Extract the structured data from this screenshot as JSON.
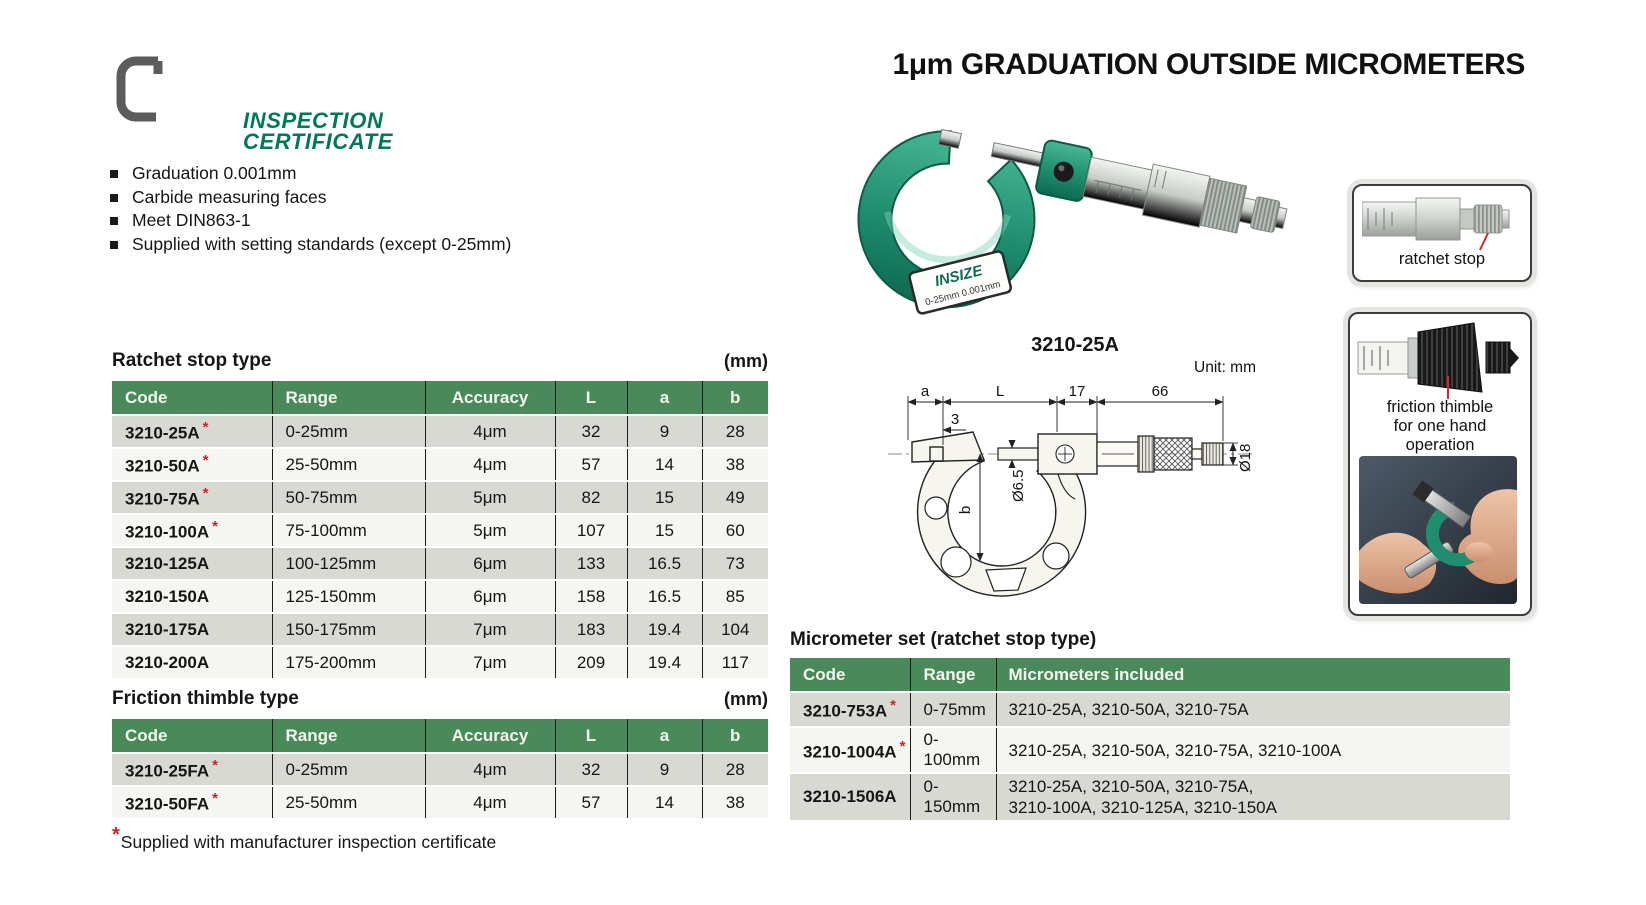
{
  "page": {
    "title": "1μm GRADUATION OUTSIDE MICROMETERS",
    "logo": {
      "line1": "INSPECTION",
      "line2": "CERTIFICATE"
    },
    "features": [
      "Graduation 0.001mm",
      "Carbide measuring faces",
      "Meet DIN863-1",
      "Supplied with setting standards (except 0-25mm)"
    ],
    "footnote": {
      "marker": "*",
      "text": "Supplied with manufacturer inspection certificate"
    }
  },
  "product": {
    "caption": "3210-25A",
    "plate": {
      "brand": "INSIZE",
      "spec": "0-25mm 0.001mm"
    }
  },
  "drawing": {
    "unit": "Unit: mm",
    "labels": {
      "a": "a",
      "L": "L",
      "d17": "17",
      "d66": "66",
      "d3": "3",
      "b": "b",
      "dia65": "Ø6.5",
      "dia18": "Ø18"
    }
  },
  "callouts": {
    "ratchet": {
      "label": "ratchet stop"
    },
    "friction": {
      "label_lines": [
        "friction thimble",
        "for one hand",
        "operation"
      ]
    }
  },
  "tables": {
    "ratchet": {
      "title": "Ratchet stop type",
      "unit": "(mm)",
      "columns": [
        "Code",
        "Range",
        "Accuracy",
        "L",
        "a",
        "b"
      ],
      "rows": [
        {
          "code": "3210-25A",
          "star": true,
          "range": "0-25mm",
          "accuracy": "4μm",
          "L": "32",
          "a": "9",
          "b": "28"
        },
        {
          "code": "3210-50A",
          "star": true,
          "range": "25-50mm",
          "accuracy": "4μm",
          "L": "57",
          "a": "14",
          "b": "38"
        },
        {
          "code": "3210-75A",
          "star": true,
          "range": "50-75mm",
          "accuracy": "5μm",
          "L": "82",
          "a": "15",
          "b": "49"
        },
        {
          "code": "3210-100A",
          "star": true,
          "range": "75-100mm",
          "accuracy": "5μm",
          "L": "107",
          "a": "15",
          "b": "60"
        },
        {
          "code": "3210-125A",
          "star": false,
          "range": "100-125mm",
          "accuracy": "6μm",
          "L": "133",
          "a": "16.5",
          "b": "73"
        },
        {
          "code": "3210-150A",
          "star": false,
          "range": "125-150mm",
          "accuracy": "6μm",
          "L": "158",
          "a": "16.5",
          "b": "85"
        },
        {
          "code": "3210-175A",
          "star": false,
          "range": "150-175mm",
          "accuracy": "7μm",
          "L": "183",
          "a": "19.4",
          "b": "104"
        },
        {
          "code": "3210-200A",
          "star": false,
          "range": "175-200mm",
          "accuracy": "7μm",
          "L": "209",
          "a": "19.4",
          "b": "117"
        }
      ]
    },
    "friction": {
      "title": "Friction thimble type",
      "unit": "(mm)",
      "columns": [
        "Code",
        "Range",
        "Accuracy",
        "L",
        "a",
        "b"
      ],
      "rows": [
        {
          "code": "3210-25FA",
          "star": true,
          "range": "0-25mm",
          "accuracy": "4μm",
          "L": "32",
          "a": "9",
          "b": "28"
        },
        {
          "code": "3210-50FA",
          "star": true,
          "range": "25-50mm",
          "accuracy": "4μm",
          "L": "57",
          "a": "14",
          "b": "38"
        }
      ]
    },
    "set": {
      "title": "Micrometer set (ratchet stop type)",
      "columns": [
        "Code",
        "Range",
        "Micrometers included"
      ],
      "rows": [
        {
          "code": "3210-753A",
          "star": true,
          "range": "0-75mm",
          "included": "3210-25A, 3210-50A, 3210-75A"
        },
        {
          "code": "3210-1004A",
          "star": true,
          "range": "0-100mm",
          "included": "3210-25A, 3210-50A, 3210-75A, 3210-100A"
        },
        {
          "code": "3210-1506A",
          "star": false,
          "range": "0-150mm",
          "included": "3210-25A, 3210-50A, 3210-75A,\n3210-100A, 3210-125A, 3210-150A"
        }
      ]
    }
  },
  "colors": {
    "table_header_green": "#4a8a5a",
    "logo_green": "#00795a",
    "accent_red": "#cc2327",
    "row_gray": "#d9d9d4",
    "row_light": "#f5f5f2",
    "frame_green": "#2aa183",
    "drawing_line": "#222222"
  }
}
